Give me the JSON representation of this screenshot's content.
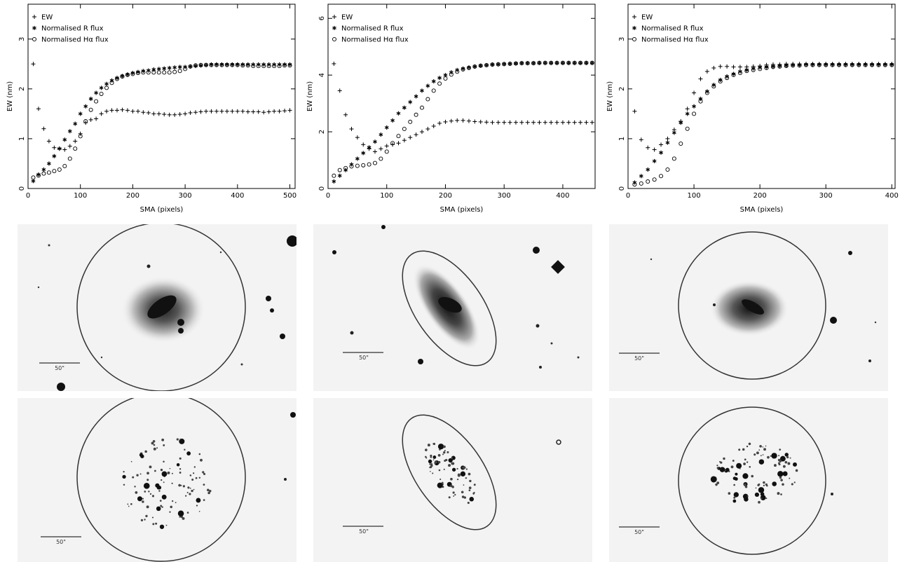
{
  "chart_data": [
    {
      "type": "scatter",
      "xlabel": "SMA (pixels)",
      "ylabel": "EW (nm)",
      "xlim": [
        0,
        510
      ],
      "ylim": [
        0,
        3.7
      ],
      "xticks": [
        0,
        100,
        200,
        300,
        400,
        500
      ],
      "yticks": [
        0,
        1,
        2,
        3
      ],
      "legend_position": "top-left",
      "series": [
        {
          "name": "EW",
          "marker": "plus",
          "x": [
            10,
            20,
            30,
            40,
            50,
            60,
            70,
            80,
            90,
            100,
            110,
            120,
            130,
            140,
            150,
            160,
            170,
            180,
            190,
            200,
            210,
            220,
            230,
            240,
            250,
            260,
            270,
            280,
            290,
            300,
            310,
            320,
            330,
            340,
            350,
            360,
            370,
            380,
            390,
            400,
            410,
            420,
            430,
            440,
            450,
            460,
            470,
            480,
            490,
            500
          ],
          "y": [
            2.5,
            1.6,
            1.2,
            0.95,
            0.82,
            0.8,
            0.78,
            0.85,
            0.95,
            1.1,
            1.32,
            1.38,
            1.4,
            1.5,
            1.55,
            1.57,
            1.57,
            1.58,
            1.57,
            1.55,
            1.55,
            1.53,
            1.52,
            1.5,
            1.5,
            1.49,
            1.48,
            1.48,
            1.49,
            1.5,
            1.52,
            1.53,
            1.54,
            1.55,
            1.55,
            1.55,
            1.55,
            1.55,
            1.55,
            1.55,
            1.55,
            1.54,
            1.54,
            1.54,
            1.53,
            1.54,
            1.55,
            1.55,
            1.56,
            1.57
          ]
        },
        {
          "name": "Normalised R flux",
          "marker": "asterisk",
          "x": [
            10,
            20,
            30,
            40,
            50,
            60,
            70,
            80,
            90,
            100,
            110,
            120,
            130,
            140,
            150,
            160,
            170,
            180,
            190,
            200,
            210,
            220,
            230,
            240,
            250,
            260,
            270,
            280,
            290,
            300,
            310,
            320,
            330,
            340,
            350,
            360,
            370,
            380,
            390,
            400,
            410,
            420,
            430,
            440,
            450,
            460,
            470,
            480,
            490,
            500
          ],
          "y": [
            0.15,
            0.28,
            0.38,
            0.5,
            0.65,
            0.8,
            0.98,
            1.15,
            1.3,
            1.5,
            1.65,
            1.8,
            1.92,
            2.02,
            2.1,
            2.17,
            2.22,
            2.26,
            2.29,
            2.32,
            2.34,
            2.36,
            2.37,
            2.39,
            2.4,
            2.41,
            2.42,
            2.43,
            2.44,
            2.44,
            2.45,
            2.46,
            2.47,
            2.48,
            2.49,
            2.49,
            2.49,
            2.49,
            2.49,
            2.49,
            2.49,
            2.49,
            2.49,
            2.49,
            2.49,
            2.49,
            2.49,
            2.49,
            2.49,
            2.49
          ]
        },
        {
          "name": "Normalised Hα flux",
          "marker": "circle",
          "x": [
            10,
            20,
            30,
            40,
            50,
            60,
            70,
            80,
            90,
            100,
            110,
            120,
            130,
            140,
            150,
            160,
            170,
            180,
            190,
            200,
            210,
            220,
            230,
            240,
            250,
            260,
            270,
            280,
            290,
            300,
            310,
            320,
            330,
            340,
            350,
            360,
            370,
            380,
            390,
            400,
            410,
            420,
            430,
            440,
            450,
            460,
            470,
            480,
            490,
            500
          ],
          "y": [
            0.22,
            0.26,
            0.3,
            0.32,
            0.35,
            0.38,
            0.45,
            0.6,
            0.8,
            1.05,
            1.35,
            1.58,
            1.75,
            1.9,
            2.02,
            2.12,
            2.2,
            2.25,
            2.28,
            2.3,
            2.32,
            2.33,
            2.33,
            2.33,
            2.33,
            2.33,
            2.33,
            2.34,
            2.36,
            2.4,
            2.45,
            2.47,
            2.48,
            2.48,
            2.48,
            2.48,
            2.48,
            2.48,
            2.48,
            2.48,
            2.47,
            2.47,
            2.46,
            2.46,
            2.46,
            2.46,
            2.46,
            2.46,
            2.47,
            2.47
          ]
        }
      ]
    },
    {
      "type": "scatter",
      "xlabel": "SMA (pixels)",
      "ylabel": "EW (nm)",
      "xlim": [
        0,
        455
      ],
      "ylim": [
        0,
        6.5
      ],
      "xticks": [
        0,
        100,
        200,
        300,
        400
      ],
      "yticks": [
        0,
        2,
        4,
        6
      ],
      "legend_position": "top-left",
      "series": [
        {
          "name": "EW",
          "marker": "plus",
          "x": [
            10,
            20,
            30,
            40,
            50,
            60,
            70,
            80,
            90,
            100,
            110,
            120,
            130,
            140,
            150,
            160,
            170,
            180,
            190,
            200,
            210,
            220,
            230,
            240,
            250,
            260,
            270,
            280,
            290,
            300,
            310,
            320,
            330,
            340,
            350,
            360,
            370,
            380,
            390,
            400,
            410,
            420,
            430,
            440,
            450
          ],
          "y": [
            4.4,
            3.45,
            2.6,
            2.1,
            1.8,
            1.55,
            1.4,
            1.3,
            1.4,
            1.5,
            1.55,
            1.6,
            1.7,
            1.8,
            1.9,
            2.0,
            2.1,
            2.2,
            2.3,
            2.35,
            2.38,
            2.4,
            2.4,
            2.38,
            2.36,
            2.35,
            2.34,
            2.33,
            2.33,
            2.33,
            2.33,
            2.33,
            2.33,
            2.33,
            2.33,
            2.33,
            2.33,
            2.33,
            2.33,
            2.33,
            2.33,
            2.33,
            2.33,
            2.33,
            2.33
          ]
        },
        {
          "name": "Normalised R flux",
          "marker": "asterisk",
          "x": [
            10,
            20,
            30,
            40,
            50,
            60,
            70,
            80,
            90,
            100,
            110,
            120,
            130,
            140,
            150,
            160,
            170,
            180,
            190,
            200,
            210,
            220,
            230,
            240,
            250,
            260,
            270,
            280,
            290,
            300,
            310,
            320,
            330,
            340,
            350,
            360,
            370,
            380,
            390,
            400,
            410,
            420,
            430,
            440,
            450
          ],
          "y": [
            0.25,
            0.45,
            0.65,
            0.85,
            1.05,
            1.25,
            1.45,
            1.65,
            1.9,
            2.15,
            2.4,
            2.65,
            2.85,
            3.05,
            3.25,
            3.45,
            3.62,
            3.78,
            3.9,
            4.0,
            4.1,
            4.18,
            4.23,
            4.27,
            4.3,
            4.33,
            4.35,
            4.37,
            4.38,
            4.39,
            4.4,
            4.41,
            4.42,
            4.42,
            4.42,
            4.43,
            4.43,
            4.43,
            4.43,
            4.43,
            4.43,
            4.43,
            4.43,
            4.43,
            4.43
          ]
        },
        {
          "name": "Normalised Hα flux",
          "marker": "circle",
          "x": [
            10,
            20,
            30,
            40,
            50,
            60,
            70,
            80,
            90,
            100,
            110,
            120,
            130,
            140,
            150,
            160,
            170,
            180,
            190,
            200,
            210,
            220,
            230,
            240,
            250,
            260,
            270,
            280,
            290,
            300,
            310,
            320,
            330,
            340,
            350,
            360,
            370,
            380,
            390,
            400,
            410,
            420,
            430,
            440,
            450
          ],
          "y": [
            0.45,
            0.65,
            0.72,
            0.78,
            0.8,
            0.82,
            0.85,
            0.9,
            1.05,
            1.3,
            1.6,
            1.85,
            2.1,
            2.35,
            2.6,
            2.85,
            3.15,
            3.45,
            3.7,
            3.88,
            4.02,
            4.12,
            4.2,
            4.25,
            4.3,
            4.33,
            4.35,
            4.37,
            4.38,
            4.39,
            4.4,
            4.41,
            4.42,
            4.42,
            4.42,
            4.43,
            4.43,
            4.43,
            4.43,
            4.43,
            4.43,
            4.43,
            4.43,
            4.43,
            4.43
          ]
        }
      ]
    },
    {
      "type": "scatter",
      "xlabel": "SMA (pixels)",
      "ylabel": "EW (nm)",
      "xlim": [
        0,
        405
      ],
      "ylim": [
        0,
        3.7
      ],
      "xticks": [
        0,
        100,
        200,
        300,
        400
      ],
      "yticks": [
        0,
        1,
        2,
        3
      ],
      "legend_position": "top-left",
      "series": [
        {
          "name": "EW",
          "marker": "plus",
          "x": [
            10,
            20,
            30,
            40,
            50,
            60,
            70,
            80,
            90,
            100,
            110,
            120,
            130,
            140,
            150,
            160,
            170,
            180,
            190,
            200,
            210,
            220,
            230,
            240,
            250,
            260,
            270,
            280,
            290,
            300,
            310,
            320,
            330,
            340,
            350,
            360,
            370,
            380,
            390,
            400
          ],
          "y": [
            1.55,
            0.98,
            0.82,
            0.78,
            0.88,
            1.0,
            1.18,
            1.35,
            1.6,
            1.92,
            2.2,
            2.35,
            2.42,
            2.45,
            2.45,
            2.44,
            2.44,
            2.44,
            2.45,
            2.46,
            2.48,
            2.49,
            2.49,
            2.5,
            2.5,
            2.5,
            2.5,
            2.5,
            2.5,
            2.5,
            2.5,
            2.5,
            2.5,
            2.5,
            2.5,
            2.5,
            2.5,
            2.5,
            2.5,
            2.5
          ]
        },
        {
          "name": "Normalised R flux",
          "marker": "asterisk",
          "x": [
            10,
            20,
            30,
            40,
            50,
            60,
            70,
            80,
            90,
            100,
            110,
            120,
            130,
            140,
            150,
            160,
            170,
            180,
            190,
            200,
            210,
            220,
            230,
            240,
            250,
            260,
            270,
            280,
            290,
            300,
            310,
            320,
            330,
            340,
            350,
            360,
            370,
            380,
            390,
            400
          ],
          "y": [
            0.12,
            0.25,
            0.38,
            0.55,
            0.72,
            0.92,
            1.12,
            1.32,
            1.5,
            1.65,
            1.8,
            1.95,
            2.08,
            2.18,
            2.25,
            2.3,
            2.35,
            2.38,
            2.41,
            2.43,
            2.44,
            2.45,
            2.46,
            2.47,
            2.48,
            2.48,
            2.49,
            2.49,
            2.49,
            2.49,
            2.49,
            2.49,
            2.49,
            2.49,
            2.49,
            2.49,
            2.49,
            2.49,
            2.49,
            2.49
          ]
        },
        {
          "name": "Normalised Hα flux",
          "marker": "circle",
          "x": [
            10,
            20,
            30,
            40,
            50,
            60,
            70,
            80,
            90,
            100,
            110,
            120,
            130,
            140,
            150,
            160,
            170,
            180,
            190,
            200,
            210,
            220,
            230,
            240,
            250,
            260,
            270,
            280,
            290,
            300,
            310,
            320,
            330,
            340,
            350,
            360,
            370,
            380,
            390,
            400
          ],
          "y": [
            0.08,
            0.1,
            0.14,
            0.18,
            0.25,
            0.38,
            0.6,
            0.9,
            1.2,
            1.5,
            1.75,
            1.92,
            2.05,
            2.15,
            2.22,
            2.28,
            2.32,
            2.36,
            2.38,
            2.4,
            2.42,
            2.44,
            2.45,
            2.46,
            2.47,
            2.47,
            2.48,
            2.48,
            2.48,
            2.48,
            2.48,
            2.48,
            2.48,
            2.48,
            2.48,
            2.48,
            2.48,
            2.48,
            2.48,
            2.48
          ]
        }
      ]
    }
  ],
  "images": {
    "scale_bar_label": "50\""
  }
}
